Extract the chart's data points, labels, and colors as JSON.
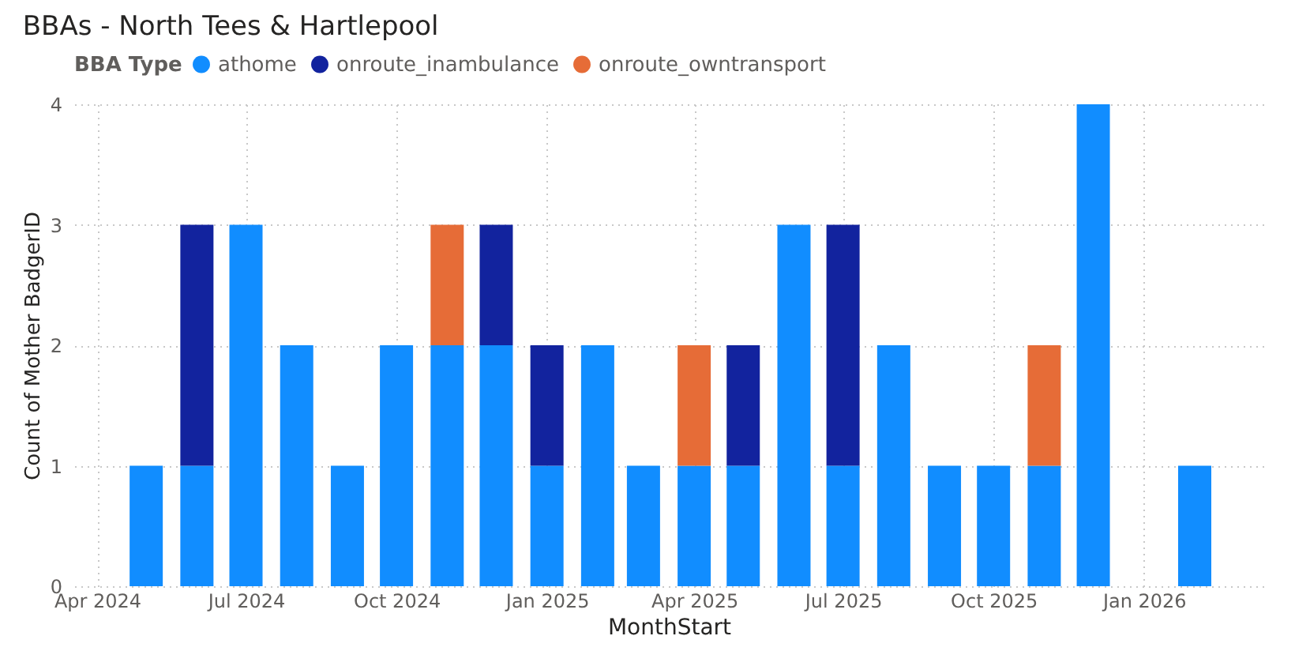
{
  "chart_data": {
    "type": "bar",
    "title": "BBAs - North Tees & Hartlepool",
    "xlabel": "MonthStart",
    "ylabel": "Count of Mother BadgerID",
    "legend_title": "BBA Type",
    "legend": "top left",
    "stacked": true,
    "grid": true,
    "x": [
      "2024-05",
      "2024-06",
      "2024-07",
      "2024-08",
      "2024-09",
      "2024-10",
      "2024-11",
      "2024-12",
      "2025-01",
      "2025-02",
      "2025-03",
      "2025-04",
      "2025-05",
      "2025-06",
      "2025-07",
      "2025-08",
      "2025-09",
      "2025-10",
      "2025-11",
      "2025-12",
      "2026-01",
      "2026-02"
    ],
    "series": [
      {
        "name": "athome",
        "color": "#118dff",
        "values": [
          1,
          1,
          3,
          2,
          1,
          2,
          2,
          2,
          1,
          2,
          1,
          1,
          1,
          3,
          1,
          2,
          1,
          1,
          1,
          4,
          null,
          1
        ]
      },
      {
        "name": "onroute_inambulance",
        "color": "#12239e",
        "values": [
          null,
          2,
          null,
          null,
          null,
          null,
          null,
          1,
          1,
          null,
          null,
          null,
          1,
          null,
          2,
          null,
          null,
          null,
          null,
          null,
          null,
          null
        ]
      },
      {
        "name": "onroute_owntransport",
        "color": "#e66c37",
        "values": [
          null,
          null,
          null,
          null,
          null,
          null,
          1,
          null,
          null,
          null,
          null,
          1,
          null,
          null,
          null,
          null,
          null,
          null,
          1,
          null,
          null,
          null
        ]
      }
    ],
    "xlim": [
      "2024-03-18",
      "2026-03-15"
    ],
    "xticks": [
      {
        "value": "2024-04",
        "label": "Apr 2024"
      },
      {
        "value": "2024-07",
        "label": "Jul 2024"
      },
      {
        "value": "2024-10",
        "label": "Oct 2024"
      },
      {
        "value": "2025-01",
        "label": "Jan 2025"
      },
      {
        "value": "2025-04",
        "label": "Apr 2025"
      },
      {
        "value": "2025-07",
        "label": "Jul 2025"
      },
      {
        "value": "2025-10",
        "label": "Oct 2025"
      },
      {
        "value": "2026-01",
        "label": "Jan 2026"
      }
    ],
    "ylim": [
      0,
      4
    ],
    "yticks": [
      0,
      1,
      2,
      3,
      4
    ]
  }
}
